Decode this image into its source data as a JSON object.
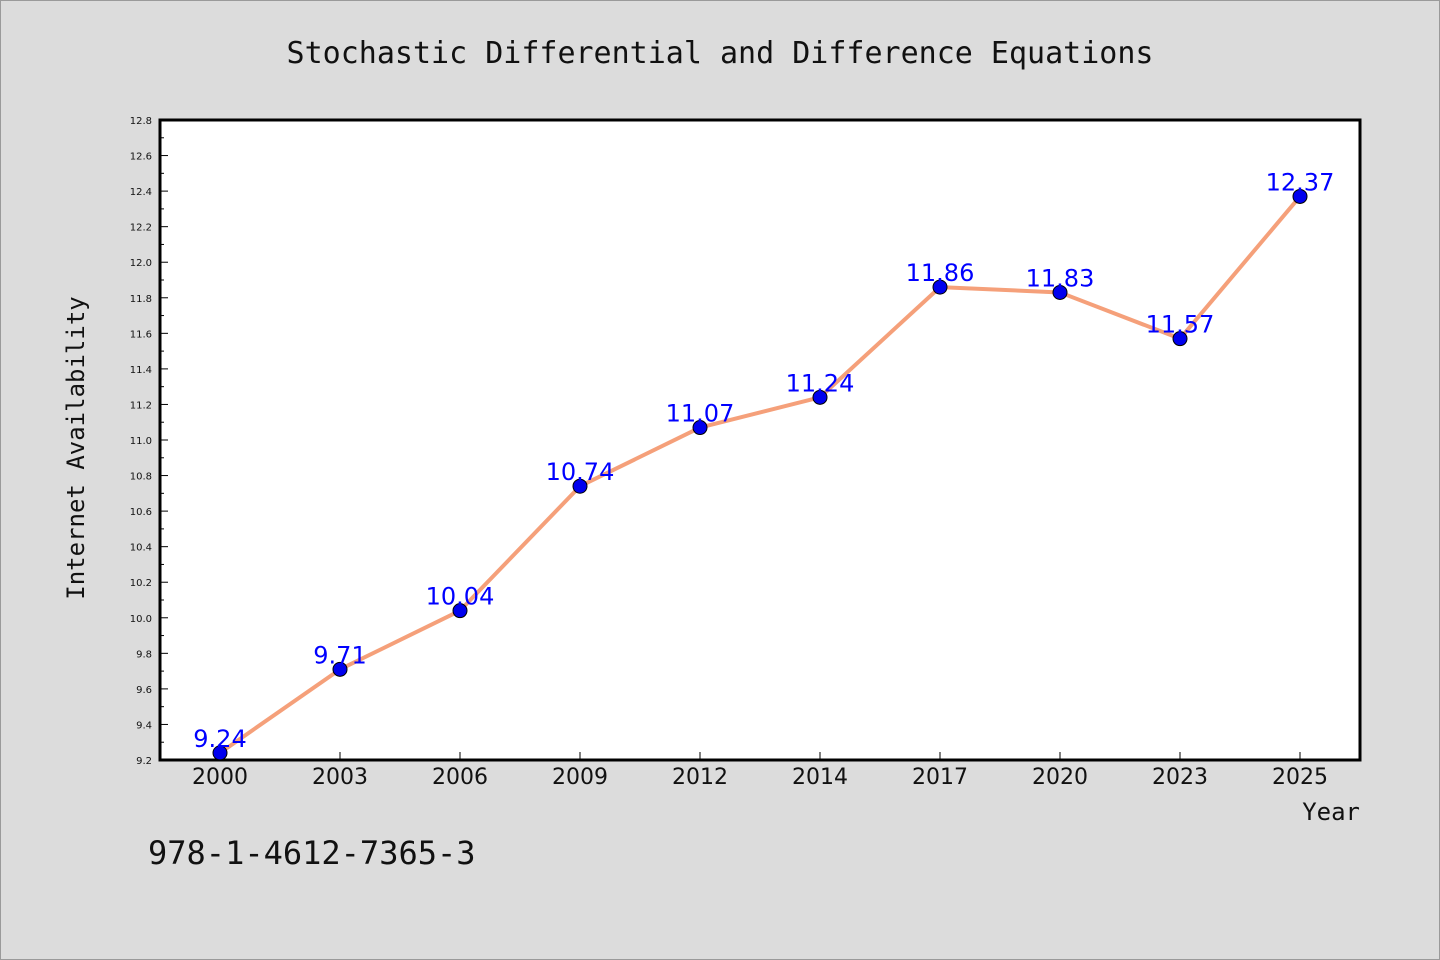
{
  "chart_data": {
    "type": "line",
    "title": "Stochastic Differential and Difference Equations",
    "xlabel": "Year",
    "ylabel": "Internet Availability",
    "categories": [
      "2000",
      "2003",
      "2006",
      "2009",
      "2012",
      "2014",
      "2017",
      "2020",
      "2023",
      "2025"
    ],
    "series": [
      {
        "values": [
          9.24,
          9.71,
          10.04,
          10.74,
          11.07,
          11.24,
          11.86,
          11.83,
          11.57,
          12.37
        ],
        "data_labels": [
          "9.24",
          "9.71",
          "10.04",
          "10.74",
          "11.07",
          "11.24",
          "11.86",
          "11.83",
          "11.57",
          "12.37"
        ]
      }
    ],
    "ylim": [
      9.2,
      12.8
    ],
    "yticks": [
      "9.2",
      "9.4",
      "9.6",
      "9.8",
      "10.0",
      "10.2",
      "10.4",
      "10.6",
      "10.8",
      "11.0",
      "11.2",
      "11.4",
      "11.6",
      "11.8",
      "12.0",
      "12.2",
      "12.4",
      "12.6",
      "12.8"
    ],
    "grid": false,
    "legend": "none",
    "colors": {
      "line": "#f5a07a",
      "marker": "#0000ee",
      "label": "#0000ff",
      "background": "#dcdcdc",
      "plot_background": "#ffffff"
    }
  },
  "footer_text": "978-1-4612-7365-3"
}
